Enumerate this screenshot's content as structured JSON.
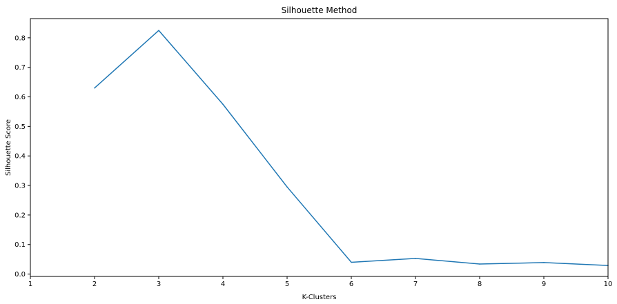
{
  "chart_data": {
    "type": "line",
    "title": "Silhouette Method",
    "xlabel": "K-Clusters",
    "ylabel": "Silhouette Score",
    "xlim": [
      1,
      10
    ],
    "ylim": [
      -0.008,
      0.865
    ],
    "x_ticks": [
      1,
      2,
      3,
      4,
      5,
      6,
      7,
      8,
      9,
      10
    ],
    "y_ticks": [
      0.0,
      0.1,
      0.2,
      0.3,
      0.4,
      0.5,
      0.6,
      0.7,
      0.8
    ],
    "y_tick_labels": [
      "0.0",
      "0.1",
      "0.2",
      "0.3",
      "0.4",
      "0.5",
      "0.6",
      "0.7",
      "0.8"
    ],
    "grid": false,
    "series": [
      {
        "x": [
          2,
          3,
          4,
          5,
          6,
          7,
          8,
          9,
          10
        ],
        "values": [
          0.63,
          0.825,
          0.575,
          0.295,
          0.04,
          0.053,
          0.034,
          0.039,
          0.029
        ],
        "color": "#1f77b4"
      }
    ]
  }
}
